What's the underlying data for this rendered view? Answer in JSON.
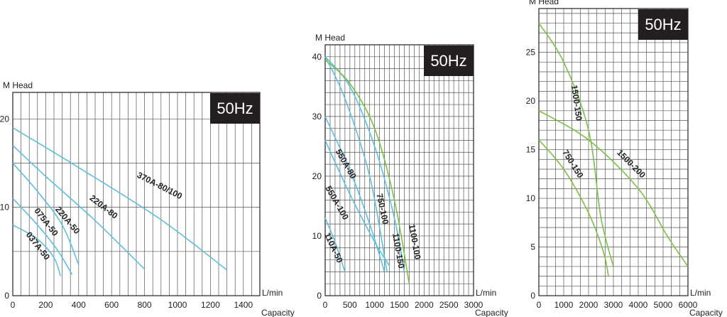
{
  "chart_data": [
    {
      "type": "line",
      "badge": "50Hz",
      "ylabel_unit": "M",
      "ylabel": "Head",
      "xlabel_unit": "L/min",
      "xlabel": "Capacity",
      "xlim": [
        0,
        1500
      ],
      "ylim": [
        0,
        23
      ],
      "grid": true,
      "x_ticks": [
        0,
        200,
        400,
        600,
        800,
        1000,
        1200,
        1400
      ],
      "y_ticks": [
        0,
        10,
        20
      ],
      "series": [
        {
          "name": "037A-50",
          "color": "#5bc0de",
          "points": [
            [
              0,
              8
            ],
            [
              150,
              6.4
            ],
            [
              250,
              4.3
            ],
            [
              290,
              2.2
            ]
          ]
        },
        {
          "name": "075A-50",
          "color": "#5bc0de",
          "points": [
            [
              0,
              11
            ],
            [
              150,
              8
            ],
            [
              270,
              5.2
            ],
            [
              360,
              2.4
            ]
          ]
        },
        {
          "name": "220A-50",
          "color": "#5bc0de",
          "points": [
            [
              0,
              15
            ],
            [
              150,
              11.8
            ],
            [
              300,
              8
            ],
            [
              400,
              3.5
            ]
          ]
        },
        {
          "name": "220A-80",
          "color": "#5bc0de",
          "points": [
            [
              0,
              17
            ],
            [
              200,
              13.5
            ],
            [
              500,
              8.5
            ],
            [
              800,
              3
            ]
          ]
        },
        {
          "name": "370A-80/100",
          "color": "#5bc0de",
          "points": [
            [
              0,
              19
            ],
            [
              400,
              14.5
            ],
            [
              900,
              8.6
            ],
            [
              1300,
              2.9
            ]
          ]
        }
      ],
      "labels": [
        {
          "text": "037A-50",
          "x": 150,
          "y": 5.6,
          "rotate": 52
        },
        {
          "text": "075A-50",
          "x": 200,
          "y": 8.3,
          "rotate": 52
        },
        {
          "text": "220A-50",
          "x": 330,
          "y": 8.5,
          "rotate": 50
        },
        {
          "text": "220A-80",
          "x": 550,
          "y": 10,
          "rotate": 38
        },
        {
          "text": "370A-80/100",
          "x": 890,
          "y": 12.4,
          "rotate": 27
        }
      ]
    },
    {
      "type": "line",
      "badge": "50Hz",
      "ylabel_unit": "M",
      "ylabel": "Head",
      "xlabel_unit": "L/min",
      "xlabel": "Capacity",
      "xlim": [
        0,
        3000
      ],
      "ylim": [
        0,
        42
      ],
      "grid": true,
      "x_ticks": [
        0,
        500,
        1000,
        1500,
        2000,
        2500,
        3000
      ],
      "y_ticks": [
        0,
        10,
        20,
        30,
        40
      ],
      "series": [
        {
          "name": "110A-50",
          "color": "#5bc0de",
          "points": [
            [
              0,
              13
            ],
            [
              200,
              9
            ],
            [
              400,
              4
            ]
          ]
        },
        {
          "name": "550A-100",
          "color": "#5bc0de",
          "points": [
            [
              0,
              26
            ],
            [
              500,
              17
            ],
            [
              1000,
              9
            ],
            [
              1300,
              5
            ]
          ]
        },
        {
          "name": "550A-80",
          "color": "#5bc0de",
          "points": [
            [
              0,
              30
            ],
            [
              500,
              21
            ],
            [
              900,
              12
            ],
            [
              1200,
              4
            ]
          ]
        },
        {
          "name": "750-100",
          "color": "#5bc0de",
          "points": [
            [
              0,
              40
            ],
            [
              400,
              33
            ],
            [
              900,
              20
            ],
            [
              1250,
              4
            ]
          ]
        },
        {
          "name": "1100-150",
          "color": "#5bc0de",
          "points": [
            [
              0,
              40
            ],
            [
              500,
              35
            ],
            [
              1000,
              25
            ],
            [
              1400,
              13
            ],
            [
              1600,
              4
            ]
          ]
        },
        {
          "name": "1100-100",
          "color": "#7ac143",
          "points": [
            [
              0,
              39.5
            ],
            [
              500,
              35.5
            ],
            [
              1000,
              28
            ],
            [
              1400,
              16
            ],
            [
              1700,
              2
            ]
          ]
        }
      ],
      "labels": [
        {
          "text": "110A-50",
          "x": 160,
          "y": 8,
          "rotate": 65
        },
        {
          "text": "550A-100",
          "x": 230,
          "y": 15.5,
          "rotate": 60
        },
        {
          "text": "550A-80",
          "x": 410,
          "y": 22,
          "rotate": 60
        },
        {
          "text": "750-100",
          "x": 1150,
          "y": 14.5,
          "rotate": 78
        },
        {
          "text": "1100-150",
          "x": 1470,
          "y": 7.5,
          "rotate": 80
        },
        {
          "text": "1100-100",
          "x": 1800,
          "y": 9,
          "rotate": 80
        }
      ]
    },
    {
      "type": "line",
      "badge": "50Hz",
      "ylabel_unit": "M",
      "ylabel": "Head",
      "xlabel_unit": "L/min",
      "xlabel": "Capacity",
      "xlim": [
        0,
        6000
      ],
      "ylim": [
        0,
        29.5
      ],
      "grid": true,
      "x_ticks": [
        0,
        1000,
        2000,
        3000,
        4000,
        5000,
        6000
      ],
      "y_ticks": [
        0,
        5,
        10,
        15,
        20,
        25
      ],
      "series": [
        {
          "name": "1500-150",
          "color": "#7ac143",
          "points": [
            [
              0,
              28
            ],
            [
              1000,
              24
            ],
            [
              2000,
              17
            ],
            [
              2500,
              8
            ],
            [
              3000,
              3
            ]
          ]
        },
        {
          "name": "750-150",
          "color": "#7ac143",
          "points": [
            [
              0,
              16
            ],
            [
              1000,
              13
            ],
            [
              2000,
              8.5
            ],
            [
              2600,
              4.5
            ],
            [
              2800,
              2
            ]
          ]
        },
        {
          "name": "1500-200",
          "color": "#7ac143",
          "points": [
            [
              0,
              19
            ],
            [
              2000,
              16
            ],
            [
              4000,
              11
            ],
            [
              5200,
              6
            ],
            [
              6000,
              3
            ]
          ]
        }
      ],
      "labels": [
        {
          "text": "1500-150",
          "x": 1500,
          "y": 19.8,
          "rotate": 82
        },
        {
          "text": "750-150",
          "x": 1350,
          "y": 13.5,
          "rotate": 58
        },
        {
          "text": "1500-200",
          "x": 3700,
          "y": 13.5,
          "rotate": 45
        }
      ]
    }
  ]
}
